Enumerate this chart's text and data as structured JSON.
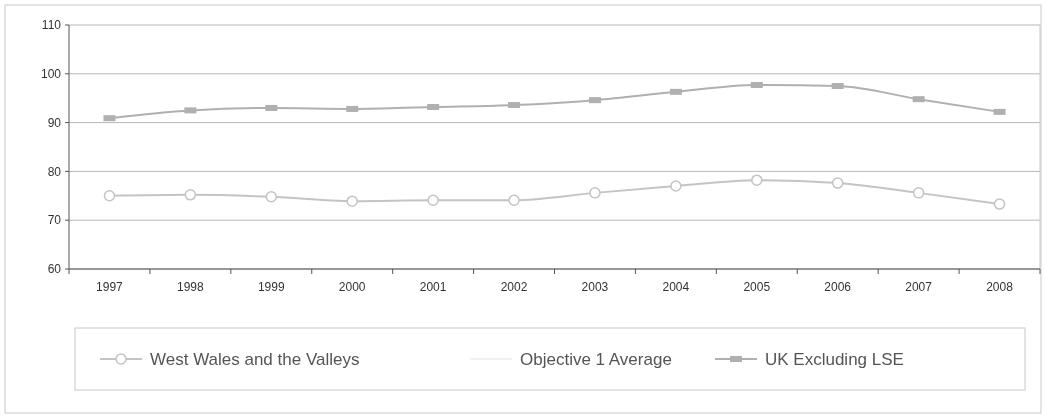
{
  "chart_data": {
    "type": "line",
    "categories": [
      "1997",
      "1998",
      "1999",
      "2000",
      "2001",
      "2002",
      "2003",
      "2004",
      "2005",
      "2006",
      "2007",
      "2008"
    ],
    "series": [
      {
        "name": "West Wales and the Valleys",
        "color": "#c4c4c4",
        "marker": "circle",
        "values": [
          75,
          75.2,
          74.8,
          73.9,
          74.1,
          74.1,
          75.6,
          77,
          78.2,
          77.6,
          75.6,
          73.3
        ]
      },
      {
        "name": "Objective 1 Average",
        "color": "#f0f0f0",
        "marker": "none",
        "values": [
          null,
          null,
          null,
          null,
          null,
          null,
          null,
          null,
          null,
          null,
          null,
          null
        ]
      },
      {
        "name": "UK Excluding LSE",
        "color": "#b0b0b0",
        "marker": "square",
        "values": [
          90.9,
          92.5,
          93,
          92.8,
          93.2,
          93.6,
          94.6,
          96.3,
          97.7,
          97.5,
          94.8,
          92.2
        ]
      }
    ],
    "ylim": [
      60,
      110
    ],
    "yticks": [
      60,
      70,
      80,
      90,
      100,
      110
    ],
    "grid": "y",
    "legend": "bottom"
  }
}
